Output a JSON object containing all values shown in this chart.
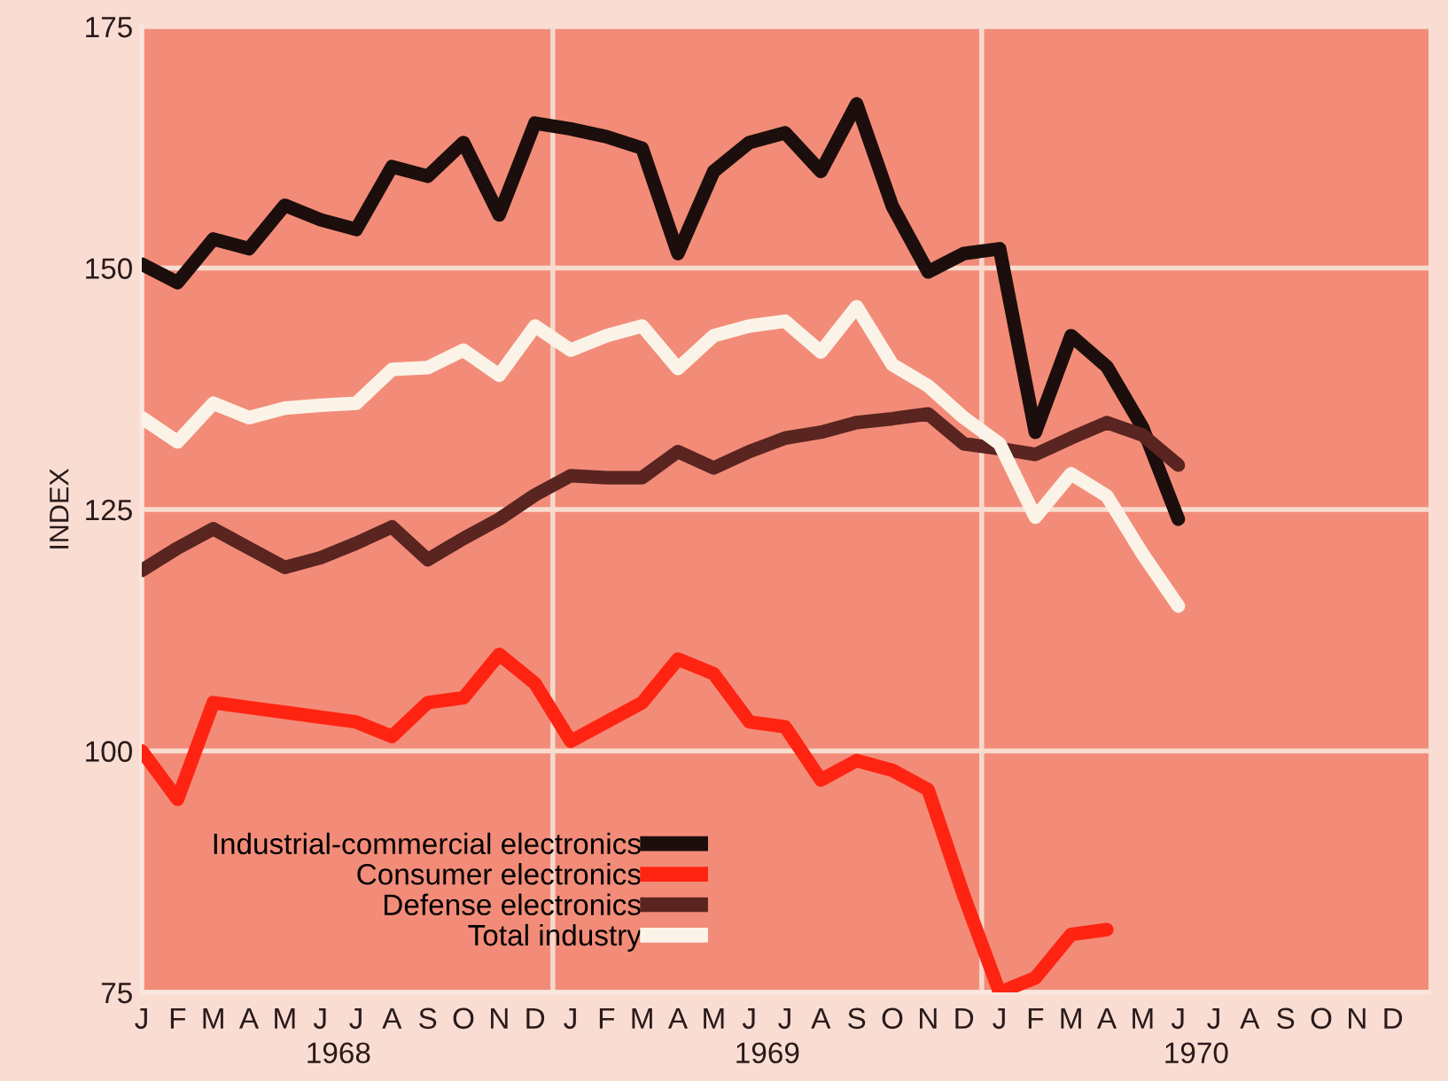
{
  "chart_data": {
    "type": "line",
    "ylabel": "INDEX",
    "categories": [
      "J",
      "F",
      "M",
      "A",
      "M",
      "J",
      "J",
      "A",
      "S",
      "O",
      "N",
      "D",
      "J",
      "F",
      "M",
      "A",
      "M",
      "J",
      "J",
      "A",
      "S",
      "O",
      "N",
      "D",
      "J",
      "F",
      "M",
      "A",
      "M",
      "J",
      "J",
      "A",
      "S",
      "O",
      "N",
      "D"
    ],
    "series": [
      {
        "name": "Industrial-commercial electronics",
        "color": "#1c0e0c",
        "values": [
          150.4,
          148.5,
          153,
          152,
          156.5,
          155,
          154,
          160.5,
          159.5,
          163,
          155.5,
          165,
          164.4,
          163.6,
          162.4,
          151.5,
          160,
          163,
          164,
          160,
          167,
          156.4,
          149.6,
          151.5,
          152,
          133,
          143,
          139.8,
          133.5,
          124,
          null,
          null,
          null,
          null,
          null,
          null
        ]
      },
      {
        "name": "Consumer electronics",
        "color": "#ff2412",
        "values": [
          100,
          95,
          105,
          104.5,
          104,
          103.5,
          103,
          101.5,
          105,
          105.5,
          110,
          107,
          101,
          103,
          105,
          109.5,
          108,
          103,
          102.5,
          97,
          99,
          98,
          96,
          85,
          75,
          76.5,
          81,
          81.5,
          null,
          null,
          null,
          null,
          null,
          null,
          null,
          null
        ]
      },
      {
        "name": "Defense electronics",
        "color": "#5a2420",
        "values": [
          118.7,
          121,
          123,
          121,
          119,
          120,
          121.5,
          123.2,
          119.8,
          122,
          124,
          126.5,
          128.5,
          128.3,
          128.3,
          131,
          129.3,
          131,
          132.4,
          133,
          134,
          134.4,
          134.9,
          131.8,
          131.3,
          130.7,
          132.4,
          134,
          132.7,
          129.6,
          null,
          null,
          null,
          null,
          null,
          null
        ]
      },
      {
        "name": "Total industry",
        "color": "#fbf3e8",
        "values": [
          134.5,
          132,
          136,
          134.5,
          135.5,
          135.8,
          136,
          139.5,
          139.7,
          141.5,
          138.9,
          144,
          141.5,
          143,
          144,
          139.6,
          143,
          144,
          144.5,
          141.3,
          146,
          140,
          137.8,
          134.5,
          131.8,
          124.2,
          128.7,
          126.4,
          120.4,
          115,
          null,
          null,
          null,
          null,
          null,
          null
        ]
      }
    ],
    "annotations": [
      "1968",
      "1969",
      "1970"
    ],
    "ylim": [
      75,
      175
    ],
    "yticks": [
      75,
      100,
      125,
      150,
      175
    ],
    "grid": "y",
    "legend": "bottom left",
    "line_style": "solid"
  }
}
